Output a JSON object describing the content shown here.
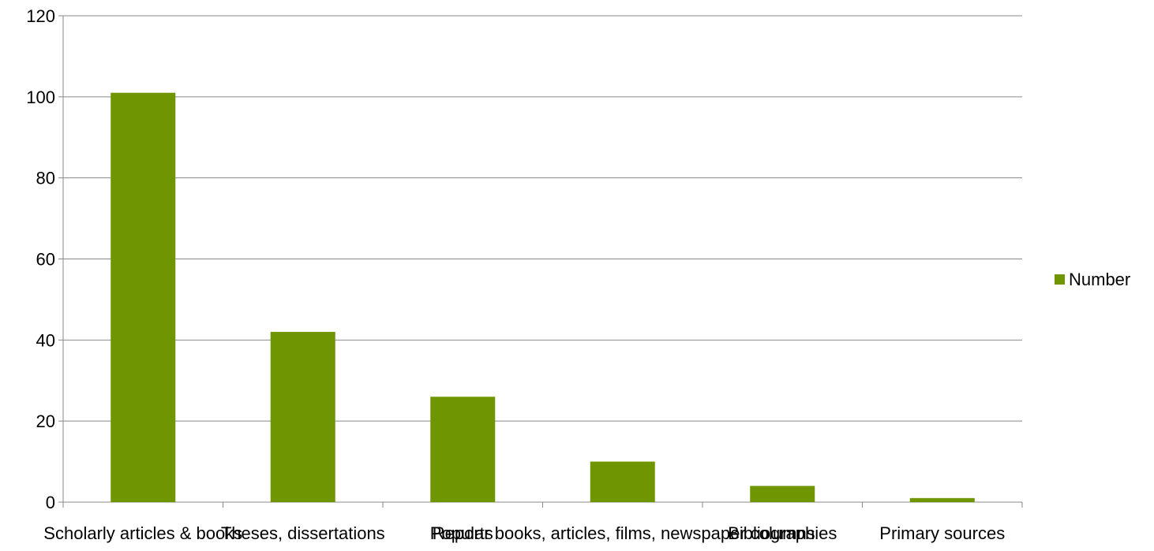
{
  "chart_data": {
    "type": "bar",
    "categories": [
      "Scholarly articles & books",
      "Theses, dissertations",
      "Reports",
      "Popular books, articles, films, newspaper columns",
      "Bibliographies",
      "Primary sources"
    ],
    "series": [
      {
        "name": "Number",
        "values": [
          101,
          42,
          26,
          10,
          4,
          1
        ],
        "color": "#6f9500"
      }
    ],
    "yticks": [
      "0",
      "20",
      "40",
      "60",
      "80",
      "100",
      "120"
    ],
    "ylim": [
      0,
      120
    ],
    "grid": true,
    "legend": "right",
    "colors": {
      "bar": "#6f9500",
      "grid": "#898989",
      "text": "#000000"
    }
  }
}
